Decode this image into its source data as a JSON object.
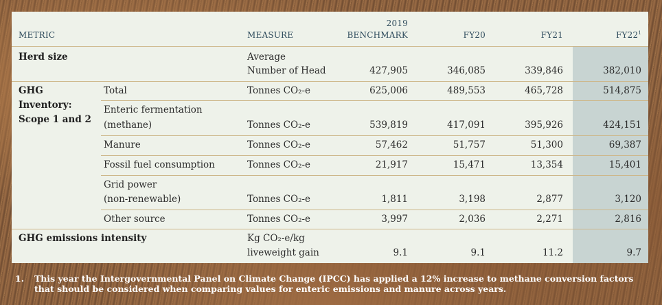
{
  "header": {
    "metric": "METRIC",
    "measure": "MEASURE",
    "benchmark_year": "2019",
    "benchmark": "BENCHMARK",
    "fy20": "FY20",
    "fy21": "FY21",
    "fy22": "FY22",
    "fy22_note": "1"
  },
  "rows": {
    "herd": {
      "metric": "Herd size",
      "measure_1": "Average",
      "measure_2": "Number of Head",
      "v2019": "427,905",
      "fy20": "346,085",
      "fy21": "339,846",
      "fy22": "382,010"
    },
    "ghg_group_1": "GHG",
    "ghg_group_2": "Inventory:",
    "ghg_group_3": "Scope 1 and 2",
    "total": {
      "sub": "Total",
      "measure": "Tonnes CO₂-e",
      "v2019": "625,006",
      "fy20": "489,553",
      "fy21": "465,728",
      "fy22": "514,875"
    },
    "enteric": {
      "sub_1": "Enteric fermentation",
      "sub_2": "(methane)",
      "measure": "Tonnes CO₂-e",
      "v2019": "539,819",
      "fy20": "417,091",
      "fy21": "395,926",
      "fy22": "424,151"
    },
    "manure": {
      "sub": "Manure",
      "measure": "Tonnes CO₂-e",
      "v2019": "57,462",
      "fy20": "51,757",
      "fy21": "51,300",
      "fy22": "69,387"
    },
    "fossil": {
      "sub": "Fossil fuel consumption",
      "measure": "Tonnes CO₂-e",
      "v2019": "21,917",
      "fy20": "15,471",
      "fy21": "13,354",
      "fy22": "15,401"
    },
    "grid": {
      "sub_1": "Grid power",
      "sub_2": "(non-renewable)",
      "measure": "Tonnes CO₂-e",
      "v2019": "1,811",
      "fy20": "3,198",
      "fy21": "2,877",
      "fy22": "3,120"
    },
    "other": {
      "sub": "Other source",
      "measure": "Tonnes CO₂-e",
      "v2019": "3,997",
      "fy20": "2,036",
      "fy21": "2,271",
      "fy22": "2,816"
    },
    "intensity": {
      "metric": "GHG emissions intensity",
      "measure_1": "Kg CO₂-e/kg",
      "measure_2": "liveweight gain",
      "v2019": "9.1",
      "fy20": "9.1",
      "fy21": "11.2",
      "fy22": "9.7"
    }
  },
  "footnote": {
    "number": "1.",
    "text": "This year the Intergovernmental Panel on Climate Change (IPCC) has applied a 12% increase to methane conversion factors that should be considered when comparing values for enteric emissions and manure across years."
  }
}
